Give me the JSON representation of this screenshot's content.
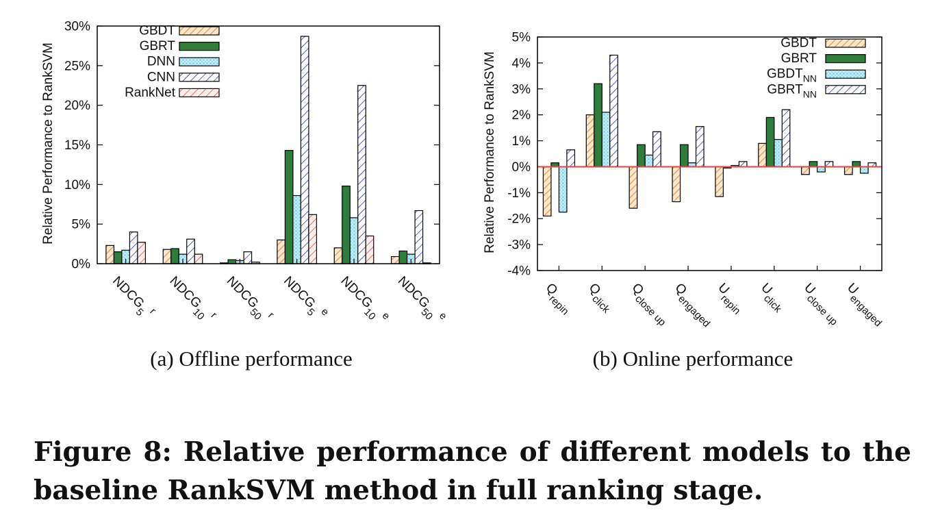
{
  "figure": {
    "caption": "Figure 8: Relative performance of different models to the baseline RankSVM method in full ranking stage."
  },
  "colors": {
    "GBDT": "#e9a55d",
    "GBRT": "#2f7d3a",
    "DNN": "#5ec8e6",
    "CNN": "#2a3aa8",
    "RankNet": "#d9534f",
    "zero_line": "#e8413a"
  },
  "chart_data": [
    {
      "type": "bar",
      "subtitle": "(a)  Offline performance",
      "ylabel": "Relative Performance to RankSVM",
      "ylim": [
        0,
        30
      ],
      "yticks": [
        "0%",
        "5%",
        "10%",
        "15%",
        "20%",
        "25%",
        "30%"
      ],
      "legend_position": "top-left",
      "categories": [
        {
          "base": "NDCG",
          "sub": "5",
          "sup": "r"
        },
        {
          "base": "NDCG",
          "sub": "10",
          "sup": "r"
        },
        {
          "base": "NDCG",
          "sub": "50",
          "sup": "r"
        },
        {
          "base": "NDCG",
          "sub": "5",
          "sup": "e"
        },
        {
          "base": "NDCG",
          "sub": "10",
          "sup": "e"
        },
        {
          "base": "NDCG",
          "sub": "50",
          "sup": "e"
        }
      ],
      "series": [
        {
          "name": "GBDT",
          "name_sub": "",
          "pattern": "GBDT",
          "values": [
            2.3,
            1.8,
            0.1,
            3.0,
            2.0,
            0.9
          ]
        },
        {
          "name": "GBRT",
          "name_sub": "",
          "pattern": "GBRT",
          "values": [
            1.5,
            1.9,
            0.5,
            14.3,
            9.8,
            1.6
          ]
        },
        {
          "name": "DNN",
          "name_sub": "",
          "pattern": "DNN",
          "values": [
            1.7,
            1.2,
            0.4,
            8.6,
            5.8,
            1.2
          ]
        },
        {
          "name": "CNN",
          "name_sub": "",
          "pattern": "CNN",
          "values": [
            4.0,
            3.1,
            1.5,
            28.7,
            22.5,
            6.7
          ]
        },
        {
          "name": "RankNet",
          "name_sub": "",
          "pattern": "RankNet",
          "values": [
            2.7,
            1.2,
            0.2,
            6.2,
            3.5,
            0.1
          ]
        }
      ]
    },
    {
      "type": "bar",
      "subtitle": "(b)  Online performance",
      "ylabel": "Relative Performance to RankSVM",
      "ylim": [
        -4,
        5
      ],
      "yticks": [
        "-4%",
        "-3%",
        "-2%",
        "-1%",
        "0%",
        "1%",
        "2%",
        "3%",
        "4%",
        "5%"
      ],
      "legend_position": "top-right",
      "categories": [
        {
          "base": "Q",
          "sub": "repin",
          "sup": ""
        },
        {
          "base": "Q",
          "sub": "click",
          "sup": ""
        },
        {
          "base": "Q",
          "sub": "close up",
          "sup": ""
        },
        {
          "base": "Q",
          "sub": "engaged",
          "sup": ""
        },
        {
          "base": "U",
          "sub": "repin",
          "sup": ""
        },
        {
          "base": "U",
          "sub": "click",
          "sup": ""
        },
        {
          "base": "U",
          "sub": "close up",
          "sup": ""
        },
        {
          "base": "U",
          "sub": "engaged",
          "sup": ""
        }
      ],
      "series": [
        {
          "name": "GBDT",
          "name_sub": "",
          "pattern": "GBDT",
          "values": [
            -1.9,
            2.0,
            -1.6,
            -1.35,
            -1.15,
            0.9,
            -0.3,
            -0.3
          ]
        },
        {
          "name": "GBRT",
          "name_sub": "",
          "pattern": "GBRT",
          "values": [
            0.15,
            3.2,
            0.85,
            0.85,
            -0.05,
            1.9,
            0.2,
            0.2
          ]
        },
        {
          "name": "GBDT",
          "name_sub": "NN",
          "pattern": "DNN",
          "values": [
            -1.75,
            2.1,
            0.45,
            0.15,
            0.05,
            1.05,
            -0.2,
            -0.25
          ]
        },
        {
          "name": "GBRT",
          "name_sub": "NN",
          "pattern": "CNN",
          "values": [
            0.65,
            4.3,
            1.35,
            1.55,
            0.2,
            2.2,
            0.2,
            0.15
          ]
        }
      ]
    }
  ]
}
